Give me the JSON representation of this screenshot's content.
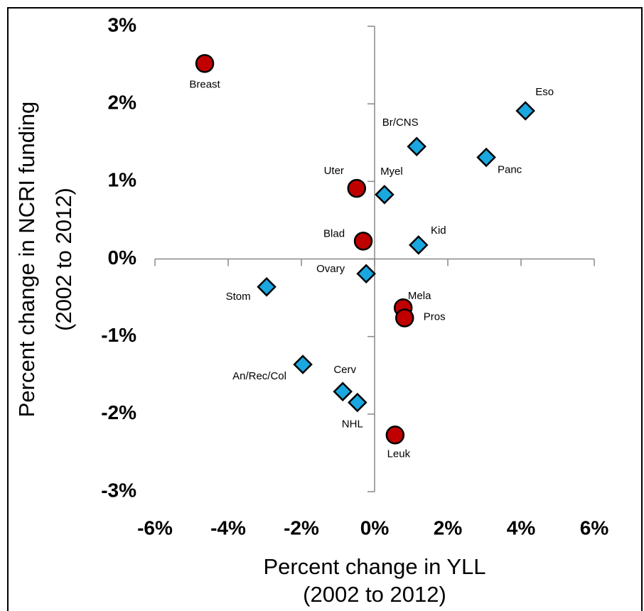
{
  "chart_data": {
    "type": "scatter",
    "xlabel": [
      "Percent change in YLL",
      "(2002 to 2012)"
    ],
    "ylabel": [
      "Percent change in NCRI funding",
      "(2002 to 2012)"
    ],
    "xlim": [
      -6,
      6
    ],
    "ylim": [
      -3,
      3
    ],
    "xticks": [
      {
        "value": -6,
        "label": "-6%"
      },
      {
        "value": -4,
        "label": "-4%"
      },
      {
        "value": -2,
        "label": "-2%"
      },
      {
        "value": 0,
        "label": "0%"
      },
      {
        "value": 2,
        "label": "2%"
      },
      {
        "value": 4,
        "label": "4%"
      },
      {
        "value": 6,
        "label": "6%"
      }
    ],
    "yticks": [
      {
        "value": -3,
        "label": "-3%"
      },
      {
        "value": -2,
        "label": "-2%"
      },
      {
        "value": -1,
        "label": "-1%"
      },
      {
        "value": 0,
        "label": "0%"
      },
      {
        "value": 1,
        "label": "1%"
      },
      {
        "value": 2,
        "label": "2%"
      },
      {
        "value": 3,
        "label": "3%"
      }
    ],
    "series": [
      {
        "marker": "circle",
        "color": "#c00000",
        "labels": [
          "Breast",
          "Uter",
          "Blad",
          "Mela",
          "Pros",
          "Leuk"
        ],
        "x": [
          -4.64,
          -0.49,
          -0.31,
          0.78,
          0.82,
          0.56
        ],
        "values": [
          2.52,
          0.91,
          0.23,
          -0.63,
          -0.76,
          -2.27
        ]
      },
      {
        "marker": "diamond",
        "color": "#1aa7e0",
        "labels": [
          "Eso",
          "Br/CNS",
          "Panc",
          "Myel",
          "Kid",
          "Ovary",
          "Stom",
          "An/Rec/Col",
          "Cerv",
          "NHL"
        ],
        "x": [
          4.12,
          1.15,
          3.05,
          0.27,
          1.2,
          -0.23,
          -2.95,
          -1.96,
          -0.87,
          -0.47
        ],
        "values": [
          1.91,
          1.45,
          1.31,
          0.83,
          0.18,
          -0.19,
          -0.36,
          -1.36,
          -1.71,
          -1.85
        ]
      }
    ]
  }
}
